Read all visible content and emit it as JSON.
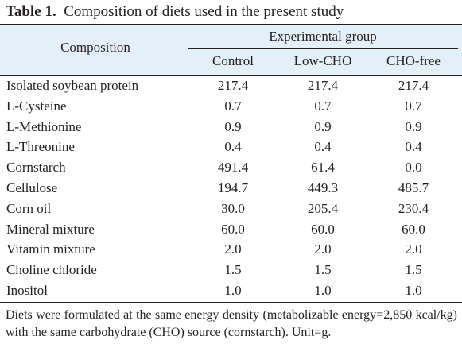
{
  "caption": {
    "label": "Table 1.",
    "text": "Composition of diets used in the present study"
  },
  "header": {
    "composition": "Composition",
    "group": "Experimental group",
    "columns": [
      "Control",
      "Low-CHO",
      "CHO-free"
    ]
  },
  "rows": [
    {
      "name": "Isolated soybean protein",
      "values": [
        "217.4",
        "217.4",
        "217.4"
      ]
    },
    {
      "name": "L-Cysteine",
      "values": [
        "0.7",
        "0.7",
        "0.7"
      ]
    },
    {
      "name": "L-Methionine",
      "values": [
        "0.9",
        "0.9",
        "0.9"
      ]
    },
    {
      "name": "L-Threonine",
      "values": [
        "0.4",
        "0.4",
        "0.4"
      ]
    },
    {
      "name": "Cornstarch",
      "values": [
        "491.4",
        "61.4",
        "0.0"
      ]
    },
    {
      "name": "Cellulose",
      "values": [
        "194.7",
        "449.3",
        "485.7"
      ]
    },
    {
      "name": "Corn oil",
      "values": [
        "30.0",
        "205.4",
        "230.4"
      ]
    },
    {
      "name": "Mineral mixture",
      "values": [
        "60.0",
        "60.0",
        "60.0"
      ]
    },
    {
      "name": "Vitamin mixture",
      "values": [
        "2.0",
        "2.0",
        "2.0"
      ]
    },
    {
      "name": "Choline chloride",
      "values": [
        "1.5",
        "1.5",
        "1.5"
      ]
    },
    {
      "name": "Inositol",
      "values": [
        "1.0",
        "1.0",
        "1.0"
      ]
    }
  ],
  "footnote": "Diets were formulated at the same energy density (metabolizable energy=2,850 kcal/kg) with the same carbohydrate (CHO) source (cornstarch). Unit=g."
}
